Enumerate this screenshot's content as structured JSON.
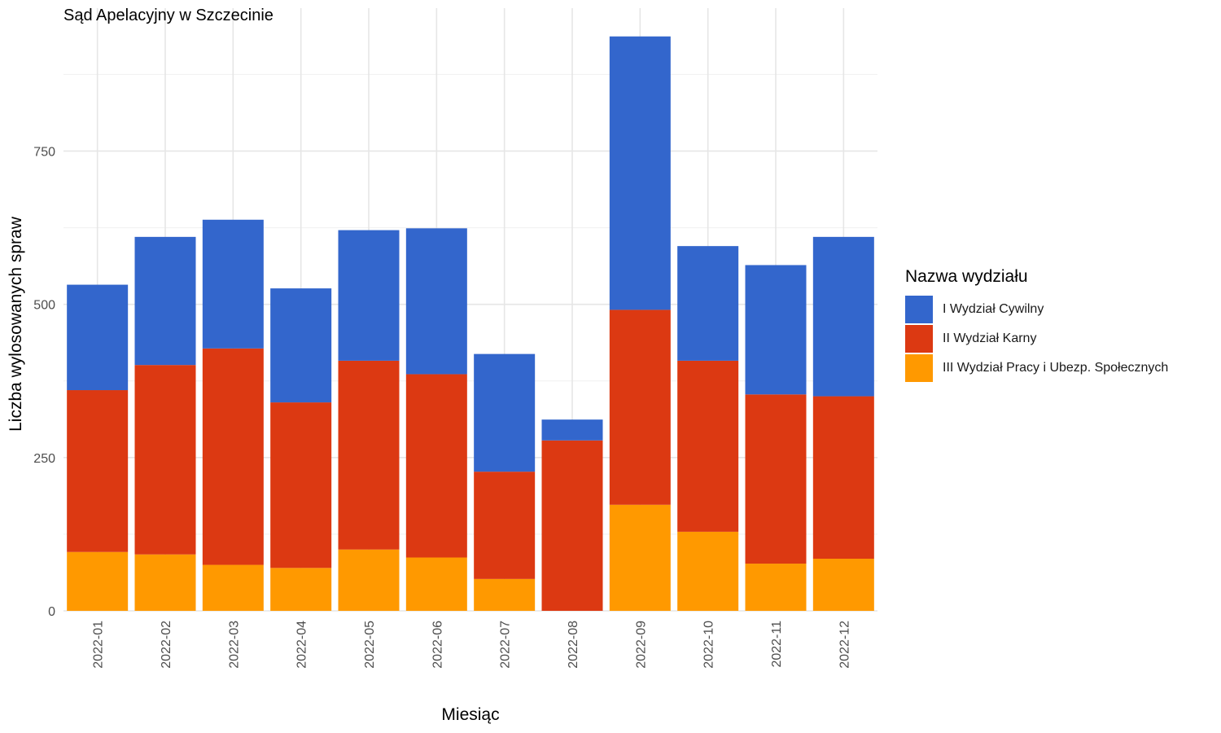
{
  "chart_data": {
    "type": "bar",
    "stacked": true,
    "title": "Sąd Apelacyjny w Szczecinie",
    "xlabel": "Miesiąc",
    "ylabel": "Liczba wylosowanych spraw",
    "ylim": [
      0,
      980
    ],
    "yticks": [
      "0",
      "250",
      "500",
      "750"
    ],
    "grid": true,
    "legend_position": "right",
    "legend_title": "Nazwa wydziału",
    "categories": [
      "2022-01",
      "2022-02",
      "2022-03",
      "2022-04",
      "2022-05",
      "2022-06",
      "2022-07",
      "2022-08",
      "2022-09",
      "2022-10",
      "2022-11",
      "2022-12"
    ],
    "series": [
      {
        "name": "III Wydział Pracy i Ubezp. Społecznych",
        "color": "#FF9900",
        "values": [
          96,
          92,
          75,
          70,
          100,
          87,
          52,
          0,
          173,
          129,
          77,
          85
        ]
      },
      {
        "name": "II Wydział Karny",
        "color": "#DC3912",
        "values": [
          264,
          309,
          353,
          270,
          308,
          299,
          175,
          278,
          318,
          279,
          276,
          265
        ]
      },
      {
        "name": "I Wydział Cywilny",
        "color": "#3366CC",
        "values": [
          172,
          209,
          210,
          186,
          213,
          238,
          192,
          34,
          446,
          187,
          211,
          260
        ]
      }
    ]
  },
  "legend": {
    "title": "Nazwa wydziału",
    "items": [
      {
        "label": "I Wydział Cywilny",
        "color": "#3366CC"
      },
      {
        "label": "II Wydział Karny",
        "color": "#DC3912"
      },
      {
        "label": "III Wydział Pracy i Ubezp. Społecznych",
        "color": "#FF9900"
      }
    ]
  }
}
